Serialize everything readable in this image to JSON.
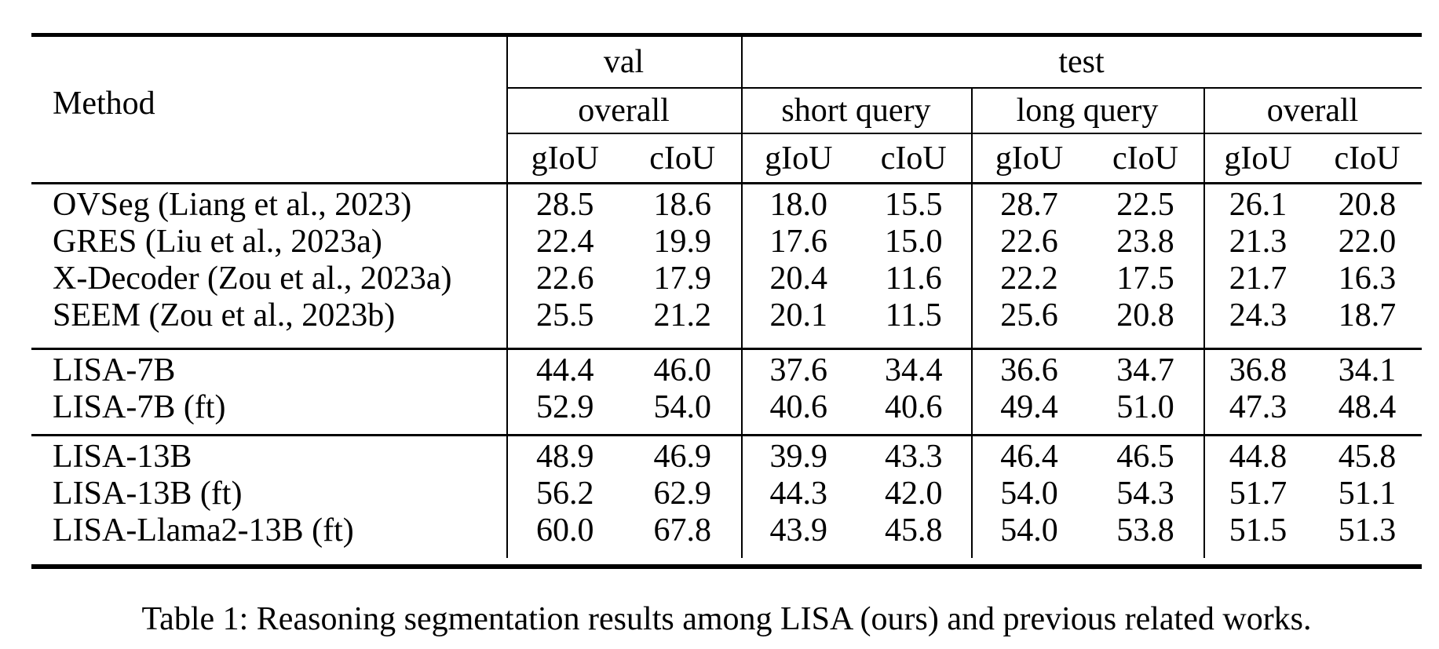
{
  "table": {
    "header": {
      "method_label": "Method",
      "groups": [
        {
          "label": "val"
        },
        {
          "label": "test"
        }
      ],
      "subgroups": [
        "overall",
        "short query",
        "long query",
        "overall"
      ],
      "metric_cols": [
        "gIoU",
        "cIoU",
        "gIoU",
        "cIoU",
        "gIoU",
        "cIoU",
        "gIoU",
        "cIoU"
      ]
    },
    "sections": [
      {
        "rows": [
          {
            "method": "OVSeg (Liang et al., 2023)",
            "values": [
              "28.5",
              "18.6",
              "18.0",
              "15.5",
              "28.7",
              "22.5",
              "26.1",
              "20.8"
            ]
          },
          {
            "method": "GRES (Liu et al., 2023a)",
            "values": [
              "22.4",
              "19.9",
              "17.6",
              "15.0",
              "22.6",
              "23.8",
              "21.3",
              "22.0"
            ]
          },
          {
            "method": "X-Decoder (Zou et al., 2023a)",
            "values": [
              "22.6",
              "17.9",
              "20.4",
              "11.6",
              "22.2",
              "17.5",
              "21.7",
              "16.3"
            ]
          },
          {
            "method": "SEEM (Zou et al., 2023b)",
            "values": [
              "25.5",
              "21.2",
              "20.1",
              "11.5",
              "25.6",
              "20.8",
              "24.3",
              "18.7"
            ]
          }
        ]
      },
      {
        "rows": [
          {
            "method": "LISA-7B",
            "values": [
              "44.4",
              "46.0",
              "37.6",
              "34.4",
              "36.6",
              "34.7",
              "36.8",
              "34.1"
            ]
          },
          {
            "method": "LISA-7B (ft)",
            "values": [
              "52.9",
              "54.0",
              "40.6",
              "40.6",
              "49.4",
              "51.0",
              "47.3",
              "48.4"
            ]
          }
        ]
      },
      {
        "rows": [
          {
            "method": "LISA-13B",
            "values": [
              "48.9",
              "46.9",
              "39.9",
              "43.3",
              "46.4",
              "46.5",
              "44.8",
              "45.8"
            ]
          },
          {
            "method": "LISA-13B (ft)",
            "values": [
              "56.2",
              "62.9",
              "44.3",
              "42.0",
              "54.0",
              "54.3",
              "51.7",
              "51.1"
            ]
          },
          {
            "method": "LISA-Llama2-13B (ft)",
            "values": [
              "60.0",
              "67.8",
              "43.9",
              "45.8",
              "54.0",
              "53.8",
              "51.5",
              "51.3"
            ]
          }
        ]
      }
    ],
    "caption": "Table 1: Reasoning segmentation results among LISA (ours) and previous related works."
  },
  "colors": {
    "text": "#000000",
    "background": "#ffffff",
    "rule": "#000000"
  }
}
